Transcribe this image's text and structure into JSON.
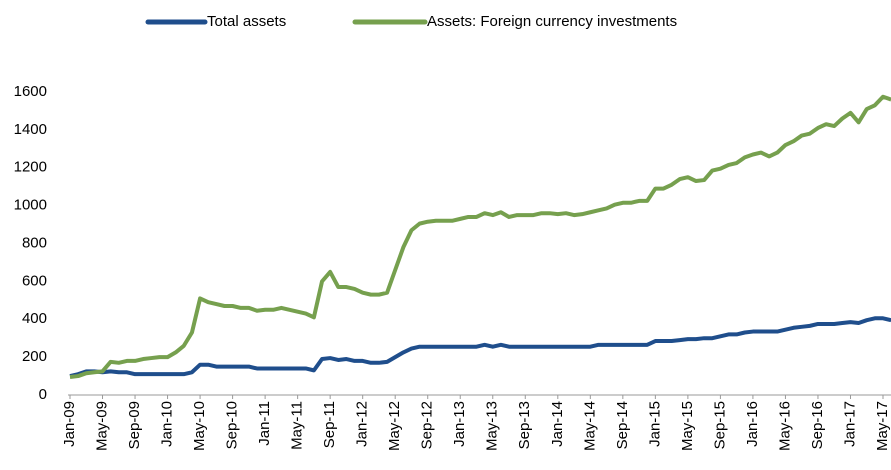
{
  "chart_data": {
    "type": "line",
    "categories": [
      "Jan-09",
      null,
      null,
      null,
      "May-09",
      null,
      null,
      null,
      "Sep-09",
      null,
      null,
      null,
      "Jan-10",
      null,
      null,
      null,
      "May-10",
      null,
      null,
      null,
      "Sep-10",
      null,
      null,
      null,
      "Jan-11",
      null,
      null,
      null,
      "May-11",
      null,
      null,
      null,
      "Sep-11",
      null,
      null,
      null,
      "Jan-12",
      null,
      null,
      null,
      "May-12",
      null,
      null,
      null,
      "Sep-12",
      null,
      null,
      null,
      "Jan-13",
      null,
      null,
      null,
      "May-13",
      null,
      null,
      null,
      "Sep-13",
      null,
      null,
      null,
      "Jan-14",
      null,
      null,
      null,
      "May-14",
      null,
      null,
      null,
      "Sep-14",
      null,
      null,
      null,
      "Jan-15",
      null,
      null,
      null,
      "May-15",
      null,
      null,
      null,
      "Sep-15",
      null,
      null,
      null,
      "Jan-16",
      null,
      null,
      null,
      "May-16",
      null,
      null,
      null,
      "Sep-16",
      null,
      null,
      null,
      "Jan-17",
      null,
      null,
      null,
      "May-17",
      null
    ],
    "series": [
      {
        "name": "Total assets",
        "color": "#1f4e8c",
        "values": [
          100,
          110,
          125,
          125,
          120,
          125,
          120,
          120,
          110,
          110,
          110,
          110,
          110,
          110,
          110,
          120,
          160,
          160,
          150,
          150,
          150,
          150,
          150,
          140,
          140,
          140,
          140,
          140,
          140,
          140,
          130,
          190,
          195,
          185,
          190,
          180,
          180,
          170,
          170,
          175,
          200,
          225,
          245,
          255,
          255,
          255,
          255,
          255,
          255,
          255,
          255,
          265,
          255,
          265,
          255,
          255,
          255,
          255,
          255,
          255,
          255,
          255,
          255,
          255,
          255,
          265,
          265,
          265,
          265,
          265,
          265,
          265,
          285,
          285,
          285,
          290,
          295,
          295,
          300,
          300,
          310,
          320,
          320,
          330,
          335,
          335,
          335,
          335,
          345,
          355,
          360,
          365,
          375,
          375,
          375,
          380,
          385,
          380,
          395,
          405,
          405,
          395
        ]
      },
      {
        "name": "Assets: Foreign currency investments",
        "color": "#76a04e",
        "values": [
          95,
          100,
          115,
          120,
          125,
          175,
          170,
          180,
          180,
          190,
          195,
          200,
          200,
          225,
          260,
          330,
          510,
          490,
          480,
          470,
          470,
          460,
          460,
          445,
          450,
          450,
          460,
          450,
          440,
          430,
          410,
          600,
          650,
          570,
          570,
          560,
          540,
          530,
          530,
          540,
          660,
          780,
          870,
          905,
          915,
          920,
          920,
          920,
          930,
          940,
          940,
          960,
          950,
          965,
          940,
          950,
          950,
          950,
          960,
          960,
          955,
          960,
          950,
          955,
          965,
          975,
          985,
          1005,
          1015,
          1015,
          1025,
          1025,
          1090,
          1090,
          1110,
          1140,
          1150,
          1130,
          1135,
          1185,
          1195,
          1215,
          1225,
          1255,
          1270,
          1280,
          1260,
          1280,
          1320,
          1340,
          1370,
          1380,
          1410,
          1430,
          1420,
          1460,
          1490,
          1440,
          1510,
          1530,
          1575,
          1560
        ]
      }
    ],
    "ylim": [
      0,
      1600
    ],
    "yticks": [
      0,
      200,
      400,
      600,
      800,
      1000,
      1200,
      1400,
      1600
    ],
    "grid": false
  }
}
